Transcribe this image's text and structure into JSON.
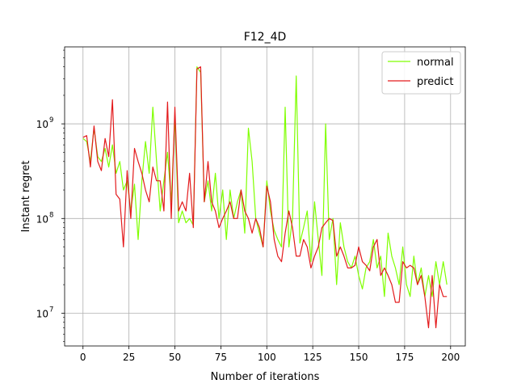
{
  "chart_data": {
    "type": "line",
    "title": "F12_4D",
    "xlabel": "Number of iterations",
    "ylabel": "Instant regret",
    "xlim": [
      -10,
      208
    ],
    "ylim": [
      4500000.0,
      6500000000.0
    ],
    "yscale": "log",
    "grid": true,
    "legend_position": "top-right",
    "x_ticks": [
      0,
      25,
      50,
      75,
      100,
      125,
      150,
      175,
      200
    ],
    "x_tick_labels": [
      "0",
      "25",
      "50",
      "75",
      "100",
      "125",
      "150",
      "175",
      "200"
    ],
    "y_ticks": [
      10000000.0,
      100000000.0,
      1000000000.0
    ],
    "y_tick_labels": [
      "10",
      "10",
      "10"
    ],
    "y_tick_exponents": [
      "7",
      "8",
      "9"
    ],
    "series": [
      {
        "name": "normal",
        "color": "#7fff00",
        "x": [
          0,
          2,
          4,
          6,
          8,
          10,
          12,
          14,
          16,
          18,
          20,
          22,
          24,
          26,
          28,
          30,
          32,
          34,
          36,
          38,
          40,
          42,
          44,
          46,
          48,
          50,
          52,
          54,
          56,
          58,
          60,
          62,
          64,
          66,
          68,
          70,
          72,
          74,
          76,
          78,
          80,
          82,
          84,
          86,
          88,
          90,
          92,
          94,
          96,
          98,
          100,
          102,
          104,
          106,
          108,
          110,
          112,
          114,
          116,
          118,
          120,
          122,
          124,
          126,
          128,
          130,
          132,
          134,
          136,
          138,
          140,
          142,
          144,
          146,
          148,
          150,
          152,
          154,
          156,
          158,
          160,
          162,
          164,
          166,
          168,
          170,
          172,
          174,
          176,
          178,
          180,
          182,
          184,
          186,
          188,
          190,
          192,
          194,
          196,
          198
        ],
        "values": [
          700000000.0,
          650000000.0,
          400000000.0,
          900000000.0,
          450000000.0,
          400000000.0,
          550000000.0,
          350000000.0,
          600000000.0,
          300000000.0,
          400000000.0,
          200000000.0,
          250000000.0,
          120000000.0,
          230000000.0,
          60000000.0,
          250000000.0,
          650000000.0,
          300000000.0,
          1500000000.0,
          400000000.0,
          120000000.0,
          250000000.0,
          500000000.0,
          150000000.0,
          1200000000.0,
          90000000.0,
          120000000.0,
          90000000.0,
          100000000.0,
          85000000.0,
          4000000000.0,
          3500000000.0,
          150000000.0,
          250000000.0,
          120000000.0,
          300000000.0,
          100000000.0,
          200000000.0,
          60000000.0,
          200000000.0,
          100000000.0,
          150000000.0,
          200000000.0,
          70000000.0,
          900000000.0,
          400000000.0,
          100000000.0,
          70000000.0,
          50000000.0,
          250000000.0,
          120000000.0,
          75000000.0,
          60000000.0,
          50000000.0,
          1500000000.0,
          50000000.0,
          100000000.0,
          3200000000.0,
          55000000.0,
          80000000.0,
          120000000.0,
          35000000.0,
          150000000.0,
          60000000.0,
          25000000.0,
          1000000000.0,
          60000000.0,
          100000000.0,
          20000000.0,
          90000000.0,
          50000000.0,
          35000000.0,
          30000000.0,
          40000000.0,
          25000000.0,
          18000000.0,
          30000000.0,
          35000000.0,
          60000000.0,
          30000000.0,
          40000000.0,
          15000000.0,
          70000000.0,
          40000000.0,
          30000000.0,
          20000000.0,
          50000000.0,
          20000000.0,
          15000000.0,
          40000000.0,
          20000000.0,
          30000000.0,
          15000000.0,
          25000000.0,
          15000000.0,
          35000000.0,
          20000000.0,
          35000000.0,
          20000000.0
        ]
      },
      {
        "name": "predict",
        "color": "#e31a1c",
        "x": [
          0,
          2,
          4,
          6,
          8,
          10,
          12,
          14,
          16,
          18,
          20,
          22,
          24,
          26,
          28,
          30,
          32,
          34,
          36,
          38,
          40,
          42,
          44,
          46,
          48,
          50,
          52,
          54,
          56,
          58,
          60,
          62,
          64,
          66,
          68,
          70,
          72,
          74,
          76,
          78,
          80,
          82,
          84,
          86,
          88,
          90,
          92,
          94,
          96,
          98,
          100,
          102,
          104,
          106,
          108,
          110,
          112,
          114,
          116,
          118,
          120,
          122,
          124,
          126,
          128,
          130,
          132,
          134,
          136,
          138,
          140,
          142,
          144,
          146,
          148,
          150,
          152,
          154,
          156,
          158,
          160,
          162,
          164,
          166,
          168,
          170,
          172,
          174,
          176,
          178,
          180,
          182,
          184,
          186,
          188,
          190,
          192,
          194,
          196,
          198
        ],
        "values": [
          720000000.0,
          750000000.0,
          350000000.0,
          950000000.0,
          400000000.0,
          320000000.0,
          700000000.0,
          450000000.0,
          1800000000.0,
          180000000.0,
          160000000.0,
          50000000.0,
          320000000.0,
          100000000.0,
          550000000.0,
          400000000.0,
          300000000.0,
          200000000.0,
          150000000.0,
          350000000.0,
          250000000.0,
          250000000.0,
          120000000.0,
          1700000000.0,
          100000000.0,
          1500000000.0,
          120000000.0,
          150000000.0,
          120000000.0,
          300000000.0,
          80000000.0,
          3800000000.0,
          4000000000.0,
          150000000.0,
          400000000.0,
          150000000.0,
          120000000.0,
          80000000.0,
          100000000.0,
          120000000.0,
          150000000.0,
          100000000.0,
          100000000.0,
          200000000.0,
          120000000.0,
          100000000.0,
          70000000.0,
          100000000.0,
          80000000.0,
          50000000.0,
          220000000.0,
          150000000.0,
          60000000.0,
          40000000.0,
          35000000.0,
          70000000.0,
          120000000.0,
          80000000.0,
          40000000.0,
          40000000.0,
          60000000.0,
          50000000.0,
          30000000.0,
          40000000.0,
          50000000.0,
          80000000.0,
          90000000.0,
          100000000.0,
          95000000.0,
          40000000.0,
          50000000.0,
          40000000.0,
          30000000.0,
          30000000.0,
          32000000.0,
          50000000.0,
          35000000.0,
          32000000.0,
          28000000.0,
          50000000.0,
          60000000.0,
          25000000.0,
          30000000.0,
          25000000.0,
          20000000.0,
          13000000.0,
          13000000.0,
          35000000.0,
          30000000.0,
          32000000.0,
          30000000.0,
          20000000.0,
          25000000.0,
          15000000.0,
          7000000.0,
          25000000.0,
          7000000.0,
          20000000.0,
          15000000.0,
          15000000.0
        ]
      }
    ]
  }
}
